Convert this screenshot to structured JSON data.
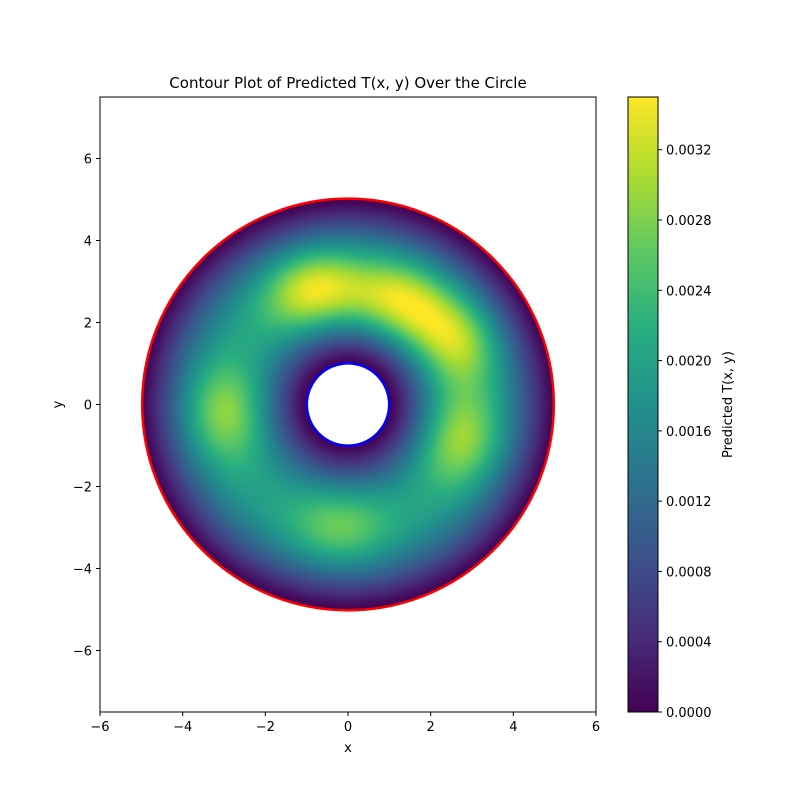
{
  "chart_data": {
    "type": "heatmap",
    "title": "Contour Plot of Predicted T(x, y) Over the Circle",
    "xlabel": "x",
    "ylabel": "y",
    "xlim": [
      -6,
      6
    ],
    "ylim": [
      -7.5,
      7.5
    ],
    "x_ticks": [
      -6,
      -4,
      -2,
      0,
      2,
      4,
      6
    ],
    "x_tick_labels": [
      "−6",
      "−4",
      "−2",
      "0",
      "2",
      "4",
      "6"
    ],
    "y_ticks": [
      -6,
      -4,
      -2,
      0,
      2,
      4,
      6
    ],
    "y_tick_labels": [
      "−6",
      "−4",
      "−2",
      "0",
      "2",
      "4",
      "6"
    ],
    "colormap": "viridis",
    "colorbar": {
      "label": "Predicted T(x, y)",
      "range": [
        0,
        0.0035
      ],
      "ticks": [
        0.0,
        0.0004,
        0.0008,
        0.0012,
        0.0016,
        0.002,
        0.0024,
        0.0028,
        0.0032
      ],
      "tick_labels": [
        "0.0000",
        "0.0004",
        "0.0008",
        "0.0012",
        "0.0016",
        "0.0020",
        "0.0024",
        "0.0028",
        "0.0032"
      ]
    },
    "domain": {
      "center": [
        0,
        0
      ],
      "outer_radius": 5,
      "inner_radius": 1,
      "outer_boundary_color": "#ff0000",
      "inner_boundary_color": "#0000ff"
    },
    "field_peaks": [
      {
        "x": -0.8,
        "y": 2.7,
        "value": 0.0034
      },
      {
        "x": 1.2,
        "y": 2.4,
        "value": 0.0033
      },
      {
        "x": 2.6,
        "y": 1.6,
        "value": 0.0031
      },
      {
        "x": 2.6,
        "y": -0.8,
        "value": 0.003
      },
      {
        "x": -2.9,
        "y": -0.2,
        "value": 0.0029
      },
      {
        "x": -0.2,
        "y": -2.9,
        "value": 0.0027
      }
    ],
    "grid": false
  }
}
